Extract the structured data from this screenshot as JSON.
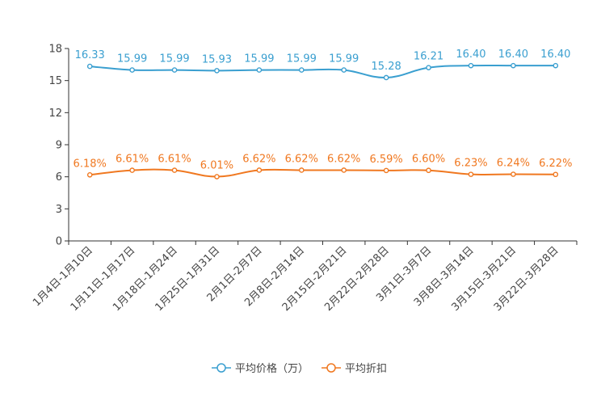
{
  "chart_data": {
    "type": "line",
    "title": "",
    "xlabel": "",
    "ylabel": "",
    "ylim": [
      0,
      18
    ],
    "yticks": [
      "0",
      "3",
      "6",
      "9",
      "12",
      "15",
      "18"
    ],
    "categories": [
      "1月4日-1月10日",
      "1月11日-1月17日",
      "1月18日-1月24日",
      "1月25日-1月31日",
      "2月1日-2月7日",
      "2月8日-2月14日",
      "2月15日-2月21日",
      "2月22日-2月28日",
      "3月1日-3月7日",
      "3月8日-3月14日",
      "3月15日-3月21日",
      "3月22日-3月28日"
    ],
    "series": [
      {
        "name": "平均价格（万）",
        "color": "#3a9fd0",
        "values": [
          16.33,
          15.99,
          15.99,
          15.93,
          15.99,
          15.99,
          15.99,
          15.28,
          16.21,
          16.4,
          16.4,
          16.4
        ],
        "labels": [
          "16.33",
          "15.99",
          "15.99",
          "15.93",
          "15.99",
          "15.99",
          "15.99",
          "15.28",
          "16.21",
          "16.40",
          "16.40",
          "16.40"
        ]
      },
      {
        "name": "平均折扣",
        "color": "#f07820",
        "values": [
          6.18,
          6.61,
          6.61,
          6.01,
          6.62,
          6.62,
          6.62,
          6.59,
          6.6,
          6.23,
          6.24,
          6.22
        ],
        "labels": [
          "6.18%",
          "6.61%",
          "6.61%",
          "6.01%",
          "6.62%",
          "6.62%",
          "6.62%",
          "6.59%",
          "6.60%",
          "6.23%",
          "6.24%",
          "6.22%"
        ]
      }
    ],
    "legend": "bottom-center",
    "grid": false
  }
}
